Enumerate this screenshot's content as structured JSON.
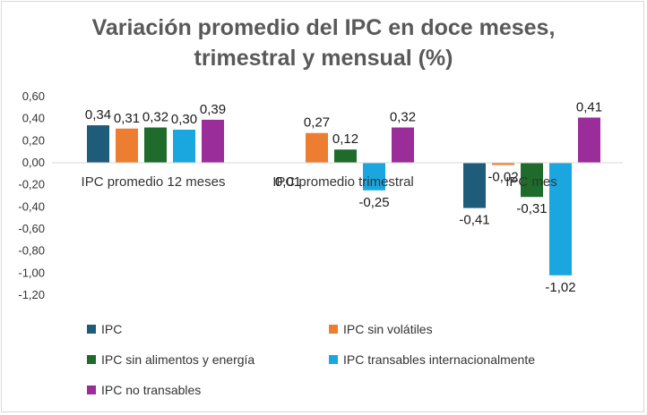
{
  "chart_data": {
    "type": "bar",
    "title_lines": [
      "Variación promedio del  IPC en doce meses,",
      "trimestral y mensual (%)"
    ],
    "categories": [
      "IPC promedio 12 meses",
      "IPC promedio trimestral",
      "IPC mes"
    ],
    "series": [
      {
        "name": "IPC",
        "color": "#1f5c7a",
        "values": [
          0.34,
          null,
          -0.41
        ],
        "labels": [
          "0,34",
          "",
          "-0,41"
        ]
      },
      {
        "name": "IPC sin volátiles",
        "color": "#ed7d31",
        "values": [
          0.31,
          0.27,
          -0.02
        ],
        "labels": [
          "0,31",
          "0,27",
          "-0,02"
        ]
      },
      {
        "name": "IPC sin alimentos y energía",
        "color": "#1e6b2b",
        "values": [
          0.32,
          0.12,
          -0.31
        ],
        "labels": [
          "0,32",
          "0,12",
          "-0,31"
        ]
      },
      {
        "name": "IPC transables internacionalmente",
        "color": "#1aa7e0",
        "values": [
          0.3,
          -0.25,
          -1.02
        ],
        "labels": [
          "0,30",
          "-0,25",
          "-1,02"
        ]
      },
      {
        "name": "IPC no transables",
        "color": "#9b2d9b",
        "values": [
          0.39,
          0.32,
          0.41
        ],
        "labels": [
          "0,39",
          "0,32",
          "0,41"
        ]
      }
    ],
    "extra_labels": [
      {
        "text": "0,01",
        "category": 1
      }
    ],
    "y_ticks": [
      "0,60",
      "0,40",
      "0,20",
      "0,00",
      "-0,20",
      "-0,40",
      "-0,60",
      "-0,80",
      "-1,00",
      "-1,20"
    ],
    "ylim": [
      -1.2,
      0.6
    ],
    "grid": false,
    "legend_position": "bottom"
  }
}
